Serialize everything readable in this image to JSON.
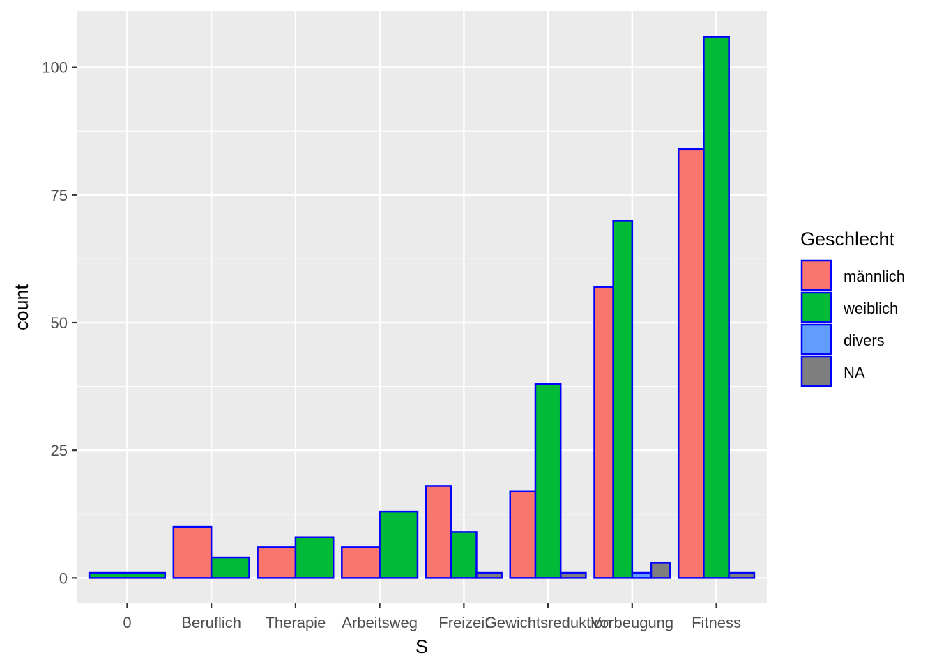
{
  "chart_data": {
    "type": "bar",
    "title": "",
    "xlabel": "S",
    "ylabel": "count",
    "categories": [
      "0",
      "Beruflich",
      "Therapie",
      "Arbeitsweg",
      "Freizeit",
      "Gewichtsreduktion",
      "Vorbeugung",
      "Fitness"
    ],
    "yticks": [
      "0",
      "25",
      "50",
      "75",
      "100"
    ],
    "ylim": [
      -5,
      111
    ],
    "grid": true,
    "legend": {
      "title": "Geschlecht",
      "placement": "right"
    },
    "bar_outline_color": "#0000ff",
    "panel_background": "#ebebeb",
    "series": [
      {
        "name": "männlich",
        "color": "#f8766d"
      },
      {
        "name": "weiblich",
        "color": "#00ba38"
      },
      {
        "name": "divers",
        "color": "#619cff"
      },
      {
        "name": "NA",
        "color": "#7f7f7f"
      }
    ],
    "bars": [
      {
        "category": "0",
        "groups": [
          {
            "series": "weiblich",
            "value": 1
          }
        ]
      },
      {
        "category": "Beruflich",
        "groups": [
          {
            "series": "männlich",
            "value": 10
          },
          {
            "series": "weiblich",
            "value": 4
          }
        ]
      },
      {
        "category": "Therapie",
        "groups": [
          {
            "series": "männlich",
            "value": 6
          },
          {
            "series": "weiblich",
            "value": 8
          }
        ]
      },
      {
        "category": "Arbeitsweg",
        "groups": [
          {
            "series": "männlich",
            "value": 6
          },
          {
            "series": "weiblich",
            "value": 13
          }
        ]
      },
      {
        "category": "Freizeit",
        "groups": [
          {
            "series": "männlich",
            "value": 18
          },
          {
            "series": "weiblich",
            "value": 9
          },
          {
            "series": "NA",
            "value": 1
          }
        ]
      },
      {
        "category": "Gewichtsreduktion",
        "groups": [
          {
            "series": "männlich",
            "value": 17
          },
          {
            "series": "weiblich",
            "value": 38
          },
          {
            "series": "NA",
            "value": 1
          }
        ]
      },
      {
        "category": "Vorbeugung",
        "groups": [
          {
            "series": "männlich",
            "value": 57
          },
          {
            "series": "weiblich",
            "value": 70
          },
          {
            "series": "divers",
            "value": 1
          },
          {
            "series": "NA",
            "value": 3
          }
        ]
      },
      {
        "category": "Fitness",
        "groups": [
          {
            "series": "männlich",
            "value": 84
          },
          {
            "series": "weiblich",
            "value": 106
          },
          {
            "series": "NA",
            "value": 1
          }
        ]
      }
    ]
  }
}
